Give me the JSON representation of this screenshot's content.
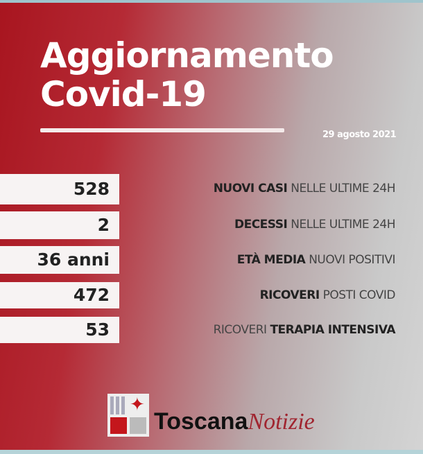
{
  "header": {
    "title_line1": "Aggiornamento",
    "title_line2": "Covid-19",
    "date": "29 agosto 2021"
  },
  "stats": [
    {
      "value": "528",
      "label_bold": "NUOVI CASI",
      "label_light": "NELLE ULTIME 24H"
    },
    {
      "value": "2",
      "label_bold": "DECESSI",
      "label_light": "NELLE ULTIME 24H"
    },
    {
      "value": "36 anni",
      "label_bold": "ETÀ MEDIA",
      "label_light": "NUOVI POSITIVI"
    },
    {
      "value": "472",
      "label_bold": "RICOVERI",
      "label_light": "POSTI COVID"
    },
    {
      "value": "53",
      "label_light_prefix": "RICOVERI",
      "label_bold": "TERAPIA INTENSIVA"
    }
  ],
  "brand": {
    "bold": "Toscana",
    "italic": "Notizie"
  },
  "colors": {
    "red": "#a8151f",
    "gray": "#d4d4d4",
    "logo_red": "#c4161c"
  }
}
